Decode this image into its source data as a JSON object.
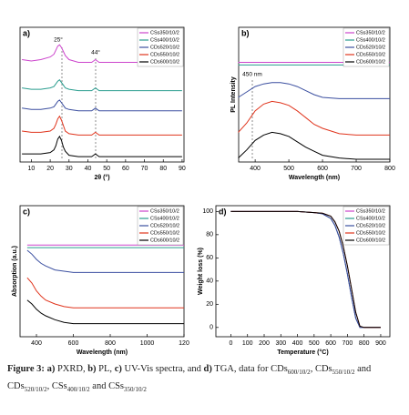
{
  "chart_data": [
    {
      "type": "line",
      "label": "a)",
      "xlabel": "2θ (°)",
      "xlim": [
        4,
        91
      ],
      "ylim": [
        0,
        10
      ],
      "xticks": [
        10,
        20,
        30,
        40,
        50,
        60,
        70,
        80,
        90
      ],
      "legend": "upper right",
      "annotations": [
        "25°",
        "44°"
      ],
      "x": [
        5,
        10,
        15,
        20,
        22,
        23,
        24,
        25,
        26,
        27,
        28,
        30,
        35,
        40,
        42,
        43,
        44,
        45,
        46,
        50,
        60,
        70,
        80,
        90
      ],
      "series": [
        {
          "name": "CSs350/10/2",
          "color": "#cc44cc",
          "values": [
            7.6,
            7.5,
            7.6,
            7.8,
            8.0,
            8.3,
            8.6,
            8.7,
            8.5,
            8.2,
            7.9,
            7.6,
            7.4,
            7.4,
            7.4,
            7.5,
            7.6,
            7.5,
            7.4,
            7.4,
            7.4,
            7.4,
            7.4,
            7.4
          ]
        },
        {
          "name": "CSs400/10/2",
          "color": "#2a9d8f",
          "values": [
            5.5,
            5.4,
            5.4,
            5.5,
            5.6,
            5.8,
            6.0,
            6.1,
            5.9,
            5.7,
            5.5,
            5.4,
            5.3,
            5.3,
            5.3,
            5.4,
            5.5,
            5.4,
            5.3,
            5.3,
            5.3,
            5.3,
            5.3,
            5.3
          ]
        },
        {
          "name": "CDs520/10/2",
          "color": "#3b4fa0",
          "values": [
            4.0,
            3.9,
            3.9,
            4.0,
            4.1,
            4.3,
            4.5,
            4.6,
            4.4,
            4.2,
            4.0,
            3.9,
            3.8,
            3.8,
            3.8,
            3.9,
            4.0,
            3.9,
            3.8,
            3.8,
            3.8,
            3.8,
            3.8,
            3.8
          ]
        },
        {
          "name": "CDs550/10/2",
          "color": "#e0341c",
          "values": [
            2.3,
            2.2,
            2.2,
            2.3,
            2.5,
            2.8,
            3.2,
            3.4,
            3.1,
            2.7,
            2.3,
            2.1,
            2.0,
            2.0,
            2.0,
            2.1,
            2.2,
            2.1,
            2.0,
            2.0,
            2.0,
            2.0,
            2.0,
            2.0
          ]
        },
        {
          "name": "CDs600/10/2",
          "color": "#000000",
          "values": [
            0.6,
            0.6,
            0.6,
            0.7,
            0.9,
            1.2,
            1.7,
            1.9,
            1.6,
            1.1,
            0.8,
            0.5,
            0.4,
            0.4,
            0.4,
            0.5,
            0.6,
            0.5,
            0.4,
            0.4,
            0.4,
            0.4,
            0.4,
            0.4
          ]
        }
      ]
    },
    {
      "type": "line",
      "label": "b)",
      "xlabel": "Wavelength (nm)",
      "ylabel": "PL Intensity",
      "xlim": [
        351,
        800
      ],
      "ylim": [
        0,
        10
      ],
      "xticks": [
        400,
        500,
        600,
        700,
        800
      ],
      "legend": "upper right",
      "annotations": [
        "450 nm"
      ],
      "x": [
        350,
        375,
        400,
        425,
        450,
        475,
        500,
        525,
        550,
        575,
        600,
        650,
        700,
        750,
        800
      ],
      "series": [
        {
          "name": "CSs350/10/2",
          "color": "#cc44cc",
          "values": [
            7.4,
            7.4,
            7.4,
            7.4,
            7.4,
            7.4,
            7.4,
            7.4,
            7.4,
            7.4,
            7.4,
            7.4,
            7.4,
            7.4,
            7.4
          ]
        },
        {
          "name": "CSs400/10/2",
          "color": "#2a9d8f",
          "values": [
            7.2,
            7.2,
            7.2,
            7.2,
            7.2,
            7.2,
            7.2,
            7.2,
            7.2,
            7.2,
            7.2,
            7.2,
            7.2,
            7.2,
            7.2
          ]
        },
        {
          "name": "CDs520/10/2",
          "color": "#3b4fa0",
          "values": [
            4.8,
            5.2,
            5.6,
            5.8,
            5.9,
            5.9,
            5.8,
            5.6,
            5.3,
            5.0,
            4.8,
            4.7,
            4.7,
            4.7,
            4.7
          ]
        },
        {
          "name": "CDs550/10/2",
          "color": "#e0341c",
          "values": [
            2.2,
            2.9,
            3.8,
            4.3,
            4.5,
            4.4,
            4.2,
            3.8,
            3.3,
            2.8,
            2.5,
            2.1,
            2.0,
            2.0,
            2.0
          ]
        },
        {
          "name": "CDs600/10/2",
          "color": "#000000",
          "values": [
            0.3,
            0.9,
            1.6,
            2.0,
            2.2,
            2.1,
            1.9,
            1.5,
            1.1,
            0.8,
            0.5,
            0.3,
            0.2,
            0.2,
            0.2
          ]
        }
      ]
    },
    {
      "type": "line",
      "label": "c)",
      "xlabel": "Wavelength (nm)",
      "ylabel": "Absorption (a.u.)",
      "xlim": [
        311,
        1200
      ],
      "ylim": [
        0,
        10
      ],
      "xticks": [
        400,
        600,
        800,
        1000,
        {
          "value": 1200,
          "label": "120"
        }
      ],
      "legend": "upper right",
      "x": [
        350,
        375,
        400,
        425,
        450,
        500,
        550,
        600,
        700,
        800,
        1000,
        1200
      ],
      "series": [
        {
          "name": "CSs350/10/2",
          "color": "#cc44cc",
          "values": [
            7.0,
            7.0,
            7.0,
            7.0,
            7.0,
            7.0,
            7.0,
            7.0,
            7.0,
            7.0,
            7.0,
            7.0
          ]
        },
        {
          "name": "CSs400/10/2",
          "color": "#2a9d8f",
          "values": [
            6.8,
            6.8,
            6.8,
            6.8,
            6.8,
            6.8,
            6.8,
            6.8,
            6.8,
            6.8,
            6.8,
            6.8
          ]
        },
        {
          "name": "CDs520/10/2",
          "color": "#3b4fa0",
          "values": [
            6.6,
            6.3,
            5.9,
            5.6,
            5.4,
            5.1,
            5.0,
            4.9,
            4.9,
            4.9,
            4.9,
            4.9
          ]
        },
        {
          "name": "CDs550/10/2",
          "color": "#e0341c",
          "values": [
            4.5,
            4.1,
            3.5,
            3.1,
            2.8,
            2.5,
            2.3,
            2.2,
            2.2,
            2.2,
            2.2,
            2.2
          ]
        },
        {
          "name": "CDs600/10/2",
          "color": "#000000",
          "values": [
            2.8,
            2.5,
            2.1,
            1.8,
            1.6,
            1.3,
            1.1,
            1.0,
            1.0,
            1.0,
            1.0,
            1.0
          ]
        }
      ]
    },
    {
      "type": "line",
      "label": "d)",
      "xlabel": "Temperature (°C)",
      "ylabel": "Weight loss (%)",
      "xlim": [
        -90,
        955
      ],
      "ylim": [
        -8,
        105
      ],
      "xticks": [
        0,
        100,
        200,
        300,
        400,
        500,
        600,
        700,
        800,
        900
      ],
      "yticks": [
        0,
        20,
        40,
        60,
        80,
        100
      ],
      "legend": "upper right",
      "x": [
        0,
        100,
        200,
        300,
        400,
        500,
        550,
        600,
        625,
        650,
        675,
        700,
        725,
        750,
        775,
        800,
        900
      ],
      "series": [
        {
          "name": "CSs350/10/2",
          "color": "#cc44cc",
          "values": [
            100,
            100,
            100,
            100,
            100,
            99,
            98,
            94,
            88,
            78,
            64,
            46,
            26,
            8,
            0,
            0,
            0
          ]
        },
        {
          "name": "CSs400/10/2",
          "color": "#2a9d8f",
          "values": [
            100,
            100,
            100,
            100,
            100,
            99,
            98,
            94,
            88,
            78,
            64,
            46,
            26,
            8,
            0,
            0,
            0
          ]
        },
        {
          "name": "CDs520/10/2",
          "color": "#3b4fa0",
          "values": [
            100,
            100,
            100,
            100,
            100,
            99,
            98,
            94,
            88,
            78,
            64,
            46,
            26,
            8,
            0,
            0,
            0
          ]
        },
        {
          "name": "CDs550/10/2",
          "color": "#e0341c",
          "values": [
            100,
            100,
            100,
            100,
            100,
            99,
            98.5,
            96,
            91,
            83,
            70,
            53,
            33,
            13,
            1,
            0,
            0
          ]
        },
        {
          "name": "CDs600/10/2",
          "color": "#000000",
          "values": [
            100,
            100,
            100,
            100,
            100,
            99,
            98.5,
            96,
            91,
            83,
            70,
            53,
            33,
            13,
            1,
            0,
            0
          ]
        }
      ]
    }
  ],
  "caption": [
    {
      "text": "Figure 3:",
      "style": "bold"
    },
    {
      "text": " a)",
      "style": "bold"
    },
    {
      "text": " PXRD, ",
      "style": "normal"
    },
    {
      "text": "b)",
      "style": "bold"
    },
    {
      "text": " PL, ",
      "style": "normal"
    },
    {
      "text": "c)",
      "style": "bold"
    },
    {
      "text": " UV-Vis spectra, and ",
      "style": "normal"
    },
    {
      "text": "d)",
      "style": "bold"
    },
    {
      "text": " TGA, data for CDs",
      "style": "normal"
    },
    {
      "text": "600/10/2",
      "style": "sub"
    },
    {
      "text": ", CDs",
      "style": "normal"
    },
    {
      "text": "550/10/2",
      "style": "sub"
    },
    {
      "text": " and CDs",
      "style": "normal"
    },
    {
      "text": "520/10/2",
      "style": "sub"
    },
    {
      "text": ", CSs",
      "style": "normal"
    },
    {
      "text": "400/10/2",
      "style": "sub"
    },
    {
      "text": " and CSs",
      "style": "normal"
    },
    {
      "text": "350/10/2",
      "style": "sub"
    }
  ]
}
